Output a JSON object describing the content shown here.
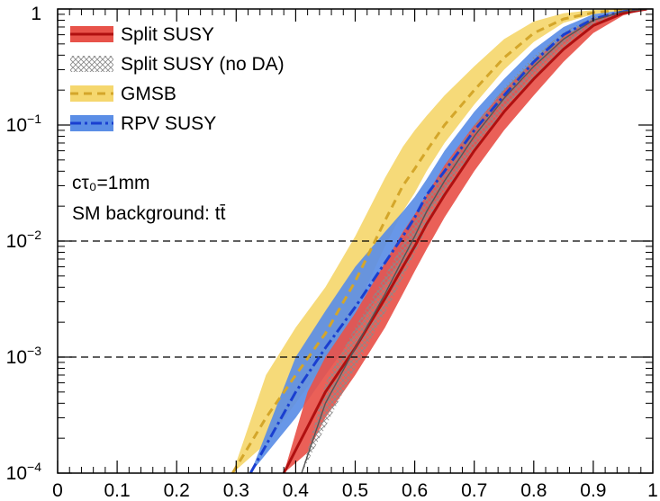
{
  "chart_data": {
    "type": "line",
    "title": "",
    "xlabel": "",
    "ylabel": "",
    "xlim": [
      0,
      1
    ],
    "ylim": [
      0.0001,
      1
    ],
    "y_scale": "log",
    "x_ticks": [
      "0",
      "0.1",
      "0.2",
      "0.3",
      "0.4",
      "0.5",
      "0.6",
      "0.7",
      "0.8",
      "0.9",
      "1"
    ],
    "y_ticks": [
      {
        "value": 1,
        "base": "1",
        "exp": ""
      },
      {
        "value": 0.1,
        "base": "10",
        "exp": "−1"
      },
      {
        "value": 0.01,
        "base": "10",
        "exp": "−2"
      },
      {
        "value": 0.001,
        "base": "10",
        "exp": "−3"
      },
      {
        "value": 0.0001,
        "base": "10",
        "exp": "−4"
      }
    ],
    "reference_lines": [
      0.01,
      0.001
    ],
    "legend_position": "top-left",
    "annotation_lines": [
      "cτ₀=1mm",
      "SM background: tt̄"
    ],
    "series": [
      {
        "name": "GMSB",
        "line_color": "#d4a62a",
        "band_color": "#f5d76e",
        "line_style": "dashed",
        "x": [
          0.294,
          0.35,
          0.4,
          0.45,
          0.5,
          0.55,
          0.58,
          0.6,
          0.62,
          0.65,
          0.7,
          0.75,
          0.8,
          0.85,
          0.9,
          0.95,
          0.99
        ],
        "center": [
          0.0001,
          0.0003,
          0.0007,
          0.0016,
          0.0045,
          0.015,
          0.03,
          0.042,
          0.06,
          0.1,
          0.2,
          0.38,
          0.62,
          0.82,
          0.93,
          0.985,
          1.0
        ],
        "lower": [
          0.0001,
          0.00018,
          0.0004,
          0.0009,
          0.0025,
          0.009,
          0.018,
          0.026,
          0.04,
          0.07,
          0.15,
          0.3,
          0.52,
          0.76,
          0.9,
          0.975,
          1.0
        ],
        "upper": [
          0.0001,
          0.0007,
          0.0018,
          0.004,
          0.011,
          0.035,
          0.065,
          0.09,
          0.12,
          0.18,
          0.32,
          0.55,
          0.78,
          0.92,
          0.98,
          0.995,
          1.0
        ]
      },
      {
        "name": "RPV SUSY",
        "line_color": "#1a3fd0",
        "band_color": "#5b8ee6",
        "line_style": "dashdot",
        "x": [
          0.324,
          0.4,
          0.45,
          0.5,
          0.55,
          0.58,
          0.6,
          0.62,
          0.65,
          0.7,
          0.75,
          0.8,
          0.85,
          0.9,
          0.95,
          0.99
        ],
        "center": [
          0.0001,
          0.0005,
          0.0012,
          0.0027,
          0.0065,
          0.011,
          0.016,
          0.025,
          0.04,
          0.09,
          0.18,
          0.35,
          0.6,
          0.82,
          0.95,
          1.0
        ],
        "lower": [
          0.0001,
          0.0003,
          0.0007,
          0.0016,
          0.0042,
          0.0075,
          0.011,
          0.017,
          0.028,
          0.065,
          0.14,
          0.28,
          0.5,
          0.75,
          0.93,
          1.0
        ],
        "upper": [
          0.0001,
          0.001,
          0.0025,
          0.006,
          0.012,
          0.018,
          0.024,
          0.034,
          0.06,
          0.13,
          0.25,
          0.45,
          0.7,
          0.9,
          0.975,
          1.0
        ]
      },
      {
        "name": "Split SUSY",
        "line_color": "#b01010",
        "band_color": "#e8534a",
        "line_style": "solid",
        "x": [
          0.38,
          0.42,
          0.45,
          0.5,
          0.55,
          0.58,
          0.6,
          0.62,
          0.65,
          0.7,
          0.75,
          0.8,
          0.85,
          0.9,
          0.95,
          0.99
        ],
        "center": [
          0.0001,
          0.00025,
          0.0005,
          0.0012,
          0.0032,
          0.006,
          0.009,
          0.014,
          0.025,
          0.06,
          0.13,
          0.25,
          0.45,
          0.72,
          0.92,
          1.0
        ],
        "lower": [
          0.0001,
          0.00015,
          0.0003,
          0.0007,
          0.0018,
          0.0035,
          0.0055,
          0.0085,
          0.016,
          0.04,
          0.09,
          0.18,
          0.35,
          0.62,
          0.88,
          1.0
        ],
        "upper": [
          0.0001,
          0.0005,
          0.001,
          0.0024,
          0.0065,
          0.012,
          0.017,
          0.025,
          0.045,
          0.1,
          0.2,
          0.36,
          0.58,
          0.82,
          0.96,
          1.0
        ]
      },
      {
        "name": "Split SUSY (no DA)",
        "line_color": "#555555",
        "band_color": "#999999",
        "line_style": "solid",
        "x": [
          0.41,
          0.45,
          0.5,
          0.55,
          0.58,
          0.6,
          0.62,
          0.65,
          0.7,
          0.75,
          0.8,
          0.85,
          0.9,
          0.95,
          0.99
        ],
        "center": [
          0.0001,
          0.0004,
          0.0012,
          0.0035,
          0.007,
          0.011,
          0.018,
          0.033,
          0.08,
          0.17,
          0.32,
          0.55,
          0.8,
          0.95,
          1.0
        ],
        "lower": [
          0.0001,
          0.00025,
          0.0008,
          0.0024,
          0.0048,
          0.0078,
          0.013,
          0.024,
          0.06,
          0.13,
          0.26,
          0.47,
          0.74,
          0.93,
          1.0
        ],
        "upper": [
          0.0001,
          0.0006,
          0.0018,
          0.005,
          0.0095,
          0.015,
          0.024,
          0.043,
          0.1,
          0.21,
          0.39,
          0.63,
          0.86,
          0.97,
          1.0
        ]
      }
    ],
    "legend_order": [
      "Split SUSY",
      "Split SUSY (no DA)",
      "GMSB",
      "RPV SUSY"
    ]
  }
}
